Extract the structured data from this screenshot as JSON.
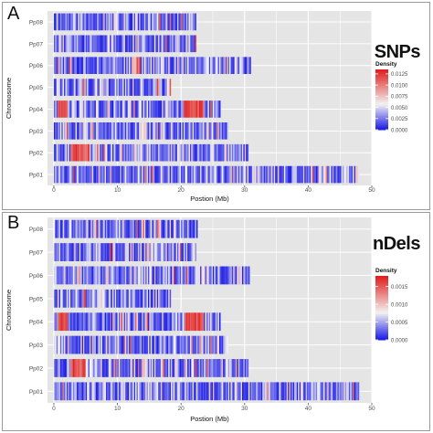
{
  "colors": {
    "low": "#1f1fe6",
    "mid": "#f2f2f2",
    "high": "#e01f1f",
    "panel_bg": "#e5e5e5",
    "grid": "#ffffff"
  },
  "panels": [
    {
      "letter": "A",
      "label": "SNPs",
      "ylabel": "Chromosome",
      "xlabel": "Postion (Mb)",
      "legend_title": "Density",
      "legend_ticks": [
        "0.0125",
        "0.0100",
        "0.0075",
        "0.0050",
        "0.0025",
        "0.0000"
      ]
    },
    {
      "letter": "B",
      "label": "InDels",
      "ylabel": "Chromosome",
      "xlabel": "Postion (Mb)",
      "legend_title": "Density",
      "legend_ticks": [
        "0.0015",
        "0.0010",
        "0.0005",
        "0.0000"
      ]
    }
  ],
  "chart_data": [
    {
      "type": "heatmap",
      "title": "SNPs",
      "xlabel": "Postion (Mb)",
      "ylabel": "Chromosome",
      "xlim": [
        -1,
        50
      ],
      "xticks": [
        0,
        10,
        20,
        30,
        40,
        50
      ],
      "categories": [
        "Pp08",
        "Pp07",
        "Pp06",
        "Pp05",
        "Pp04",
        "Pp03",
        "Pp02",
        "Pp01"
      ],
      "chromosome_lengths_mb": [
        22.5,
        22.2,
        30.8,
        18.3,
        26.1,
        27.2,
        30.5,
        48.0
      ],
      "legend": {
        "title": "Density",
        "min": 0.0,
        "max": 0.0135,
        "ticks": [
          0.0,
          0.0025,
          0.005,
          0.0075,
          0.01,
          0.0125
        ]
      },
      "hotspots": [
        {
          "chromosome": "Pp04",
          "start_mb": 0.5,
          "end_mb": 2.0,
          "level": "high"
        },
        {
          "chromosome": "Pp04",
          "start_mb": 20.5,
          "end_mb": 23.5,
          "level": "high"
        },
        {
          "chromosome": "Pp02",
          "start_mb": 2.5,
          "end_mb": 5.5,
          "level": "high"
        },
        {
          "chromosome": "Pp06",
          "start_mb": 12.0,
          "end_mb": 13.5,
          "level": "medium"
        },
        {
          "chromosome": "Pp05",
          "start_mb": 4.5,
          "end_mb": 5.0,
          "level": "medium"
        }
      ]
    },
    {
      "type": "heatmap",
      "title": "InDels",
      "xlabel": "Postion (Mb)",
      "ylabel": "Chromosome",
      "xlim": [
        -1,
        50
      ],
      "xticks": [
        0,
        10,
        20,
        30,
        40,
        50
      ],
      "categories": [
        "Pp08",
        "Pp07",
        "Pp06",
        "Pp05",
        "Pp04",
        "Pp03",
        "Pp02",
        "Pp01"
      ],
      "chromosome_lengths_mb": [
        22.5,
        22.2,
        30.8,
        18.3,
        26.1,
        27.2,
        30.5,
        48.0
      ],
      "legend": {
        "title": "Density",
        "min": 0.0,
        "max": 0.0018,
        "ticks": [
          0.0,
          0.0005,
          0.001,
          0.0015
        ]
      },
      "hotspots": [
        {
          "chromosome": "Pp04",
          "start_mb": 0.5,
          "end_mb": 2.0,
          "level": "high"
        },
        {
          "chromosome": "Pp04",
          "start_mb": 20.5,
          "end_mb": 23.5,
          "level": "high"
        },
        {
          "chromosome": "Pp02",
          "start_mb": 2.5,
          "end_mb": 5.0,
          "level": "high"
        },
        {
          "chromosome": "Pp05",
          "start_mb": 4.5,
          "end_mb": 5.0,
          "level": "medium"
        }
      ]
    }
  ]
}
